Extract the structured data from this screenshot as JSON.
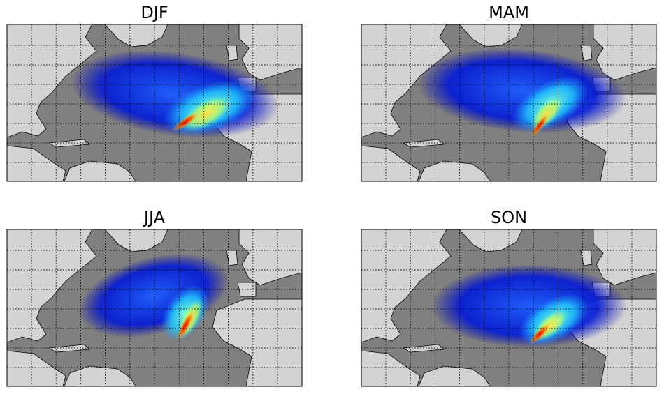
{
  "panels": [
    {
      "title": "DJF"
    },
    {
      "title": "MAM"
    },
    {
      "title": "JJA"
    },
    {
      "title": "SON"
    }
  ]
}
